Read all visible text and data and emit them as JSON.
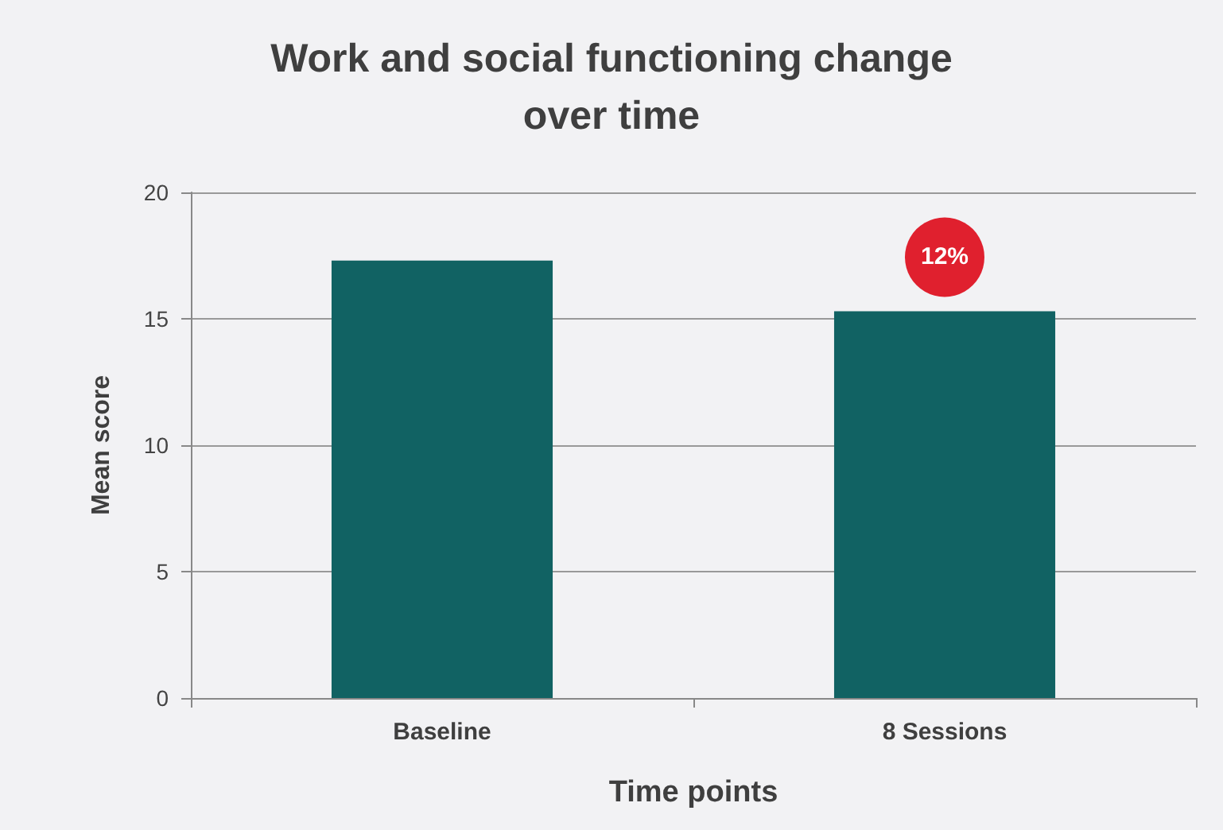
{
  "chart_data": {
    "type": "bar",
    "title": "Work and social functioning change\nover time",
    "xlabel": "Time points",
    "ylabel": "Mean score",
    "categories": [
      "Baseline",
      "8 Sessions"
    ],
    "values": [
      17.3,
      15.3
    ],
    "color": "#116263",
    "ylim": [
      0,
      20
    ],
    "yticks": [
      0,
      5,
      10,
      15,
      20
    ],
    "grid": "y",
    "annotations": [
      {
        "text": "12%",
        "x": "8 Sessions",
        "y": 15.3
      }
    ]
  }
}
